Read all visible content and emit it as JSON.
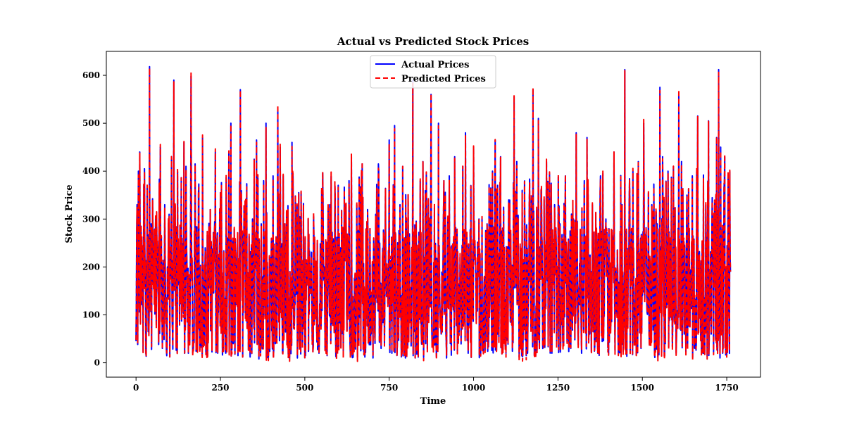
{
  "chart_data": {
    "type": "line",
    "title": "Actual vs Predicted Stock Prices",
    "xlabel": "Time",
    "ylabel": "Stock Price",
    "xlim": [
      -88,
      1850
    ],
    "ylim": [
      -30,
      650
    ],
    "xticks": [
      0,
      250,
      500,
      750,
      1000,
      1250,
      1500,
      1750
    ],
    "yticks": [
      0,
      100,
      200,
      300,
      400,
      500,
      600
    ],
    "n_points": 1762,
    "grid": false,
    "legend_position": "upper center",
    "series": [
      {
        "name": "Actual Prices",
        "color": "#0000ff",
        "line_style": "solid",
        "line_width": 2,
        "key_points": [
          [
            0,
            45
          ],
          [
            3,
            330
          ],
          [
            7,
            400
          ],
          [
            11,
            440
          ],
          [
            15,
            285
          ],
          [
            20,
            180
          ],
          [
            25,
            405
          ],
          [
            29,
            20
          ],
          [
            33,
            370
          ],
          [
            40,
            618
          ],
          [
            45,
            290
          ],
          [
            52,
            160
          ],
          [
            58,
            300
          ],
          [
            66,
            140
          ],
          [
            72,
            450
          ],
          [
            78,
            30
          ],
          [
            85,
            330
          ],
          [
            93,
            200
          ],
          [
            100,
            12
          ],
          [
            105,
            430
          ],
          [
            112,
            590
          ],
          [
            118,
            140
          ],
          [
            126,
            180
          ],
          [
            133,
            160
          ],
          [
            142,
            460
          ],
          [
            148,
            410
          ],
          [
            155,
            20
          ],
          [
            163,
            598
          ],
          [
            168,
            20
          ],
          [
            175,
            415
          ],
          [
            183,
            170
          ],
          [
            190,
            60
          ],
          [
            197,
            470
          ],
          [
            205,
            240
          ],
          [
            212,
            15
          ],
          [
            220,
            320
          ],
          [
            227,
            160
          ],
          [
            235,
            440
          ],
          [
            242,
            20
          ],
          [
            250,
            355
          ],
          [
            258,
            180
          ],
          [
            266,
            20
          ],
          [
            275,
            440
          ],
          [
            281,
            500
          ],
          [
            288,
            40
          ],
          [
            295,
            240
          ],
          [
            302,
            15
          ],
          [
            309,
            570
          ],
          [
            316,
            12
          ],
          [
            323,
            330
          ],
          [
            330,
            130
          ],
          [
            338,
            12
          ],
          [
            345,
            300
          ],
          [
            350,
            425
          ],
          [
            357,
            465
          ],
          [
            364,
            8
          ],
          [
            371,
            290
          ],
          [
            378,
            380
          ],
          [
            385,
            500
          ],
          [
            392,
            10
          ],
          [
            399,
            180
          ],
          [
            406,
            390
          ],
          [
            413,
            40
          ],
          [
            420,
            530
          ],
          [
            427,
            450
          ],
          [
            434,
            20
          ],
          [
            441,
            290
          ],
          [
            448,
            250
          ],
          [
            455,
            10
          ],
          [
            462,
            460
          ],
          [
            470,
            120
          ],
          [
            478,
            10
          ],
          [
            485,
            305
          ],
          [
            494,
            180
          ],
          [
            502,
            15
          ],
          [
            510,
            300
          ],
          [
            518,
            145
          ],
          [
            526,
            305
          ],
          [
            534,
            150
          ],
          [
            542,
            20
          ],
          [
            550,
            360
          ],
          [
            558,
            200
          ],
          [
            566,
            15
          ],
          [
            574,
            330
          ],
          [
            582,
            140
          ],
          [
            590,
            350
          ],
          [
            598,
            40
          ],
          [
            606,
            240
          ],
          [
            614,
            18
          ],
          [
            622,
            330
          ],
          [
            630,
            160
          ],
          [
            638,
            430
          ],
          [
            646,
            30
          ],
          [
            654,
            330
          ],
          [
            662,
            175
          ],
          [
            670,
            415
          ],
          [
            678,
            12
          ],
          [
            686,
            320
          ],
          [
            694,
            160
          ],
          [
            702,
            10
          ],
          [
            710,
            310
          ],
          [
            718,
            415
          ],
          [
            726,
            30
          ],
          [
            734,
            250
          ],
          [
            742,
            140
          ],
          [
            750,
            465
          ],
          [
            758,
            20
          ],
          [
            766,
            495
          ],
          [
            774,
            40
          ],
          [
            782,
            330
          ],
          [
            790,
            410
          ],
          [
            798,
            10
          ],
          [
            806,
            350
          ],
          [
            814,
            110
          ],
          [
            820,
            590
          ],
          [
            827,
            10
          ],
          [
            834,
            200
          ],
          [
            842,
            380
          ],
          [
            850,
            420
          ],
          [
            858,
            40
          ],
          [
            866,
            340
          ],
          [
            874,
            560
          ],
          [
            881,
            30
          ],
          [
            888,
            200
          ],
          [
            896,
            500
          ],
          [
            904,
            60
          ],
          [
            912,
            380
          ],
          [
            920,
            10
          ],
          [
            928,
            390
          ],
          [
            936,
            120
          ],
          [
            944,
            430
          ],
          [
            952,
            20
          ],
          [
            960,
            220
          ],
          [
            968,
            410
          ],
          [
            976,
            480
          ],
          [
            984,
            20
          ],
          [
            992,
            370
          ],
          [
            1000,
            450
          ],
          [
            1008,
            90
          ],
          [
            1016,
            300
          ],
          [
            1024,
            60
          ],
          [
            1032,
            180
          ],
          [
            1040,
            290
          ],
          [
            1048,
            120
          ],
          [
            1056,
            400
          ],
          [
            1064,
            465
          ],
          [
            1072,
            60
          ],
          [
            1080,
            430
          ],
          [
            1088,
            150
          ],
          [
            1096,
            20
          ],
          [
            1104,
            340
          ],
          [
            1112,
            200
          ],
          [
            1120,
            555
          ],
          [
            1128,
            420
          ],
          [
            1136,
            30
          ],
          [
            1144,
            360
          ],
          [
            1152,
            230
          ],
          [
            1160,
            20
          ],
          [
            1168,
            300
          ],
          [
            1176,
            570
          ],
          [
            1184,
            15
          ],
          [
            1192,
            510
          ],
          [
            1200,
            360
          ],
          [
            1208,
            40
          ],
          [
            1216,
            420
          ],
          [
            1224,
            150
          ],
          [
            1232,
            20
          ],
          [
            1240,
            330
          ],
          [
            1248,
            180
          ],
          [
            1256,
            290
          ],
          [
            1264,
            60
          ],
          [
            1272,
            390
          ],
          [
            1280,
            230
          ],
          [
            1288,
            30
          ],
          [
            1296,
            300
          ],
          [
            1304,
            480
          ],
          [
            1312,
            150
          ],
          [
            1320,
            20
          ],
          [
            1328,
            380
          ],
          [
            1336,
            470
          ],
          [
            1344,
            60
          ],
          [
            1352,
            330
          ],
          [
            1360,
            200
          ],
          [
            1368,
            20
          ],
          [
            1376,
            390
          ],
          [
            1384,
            180
          ],
          [
            1392,
            300
          ],
          [
            1400,
            20
          ],
          [
            1408,
            270
          ],
          [
            1416,
            440
          ],
          [
            1424,
            130
          ],
          [
            1432,
            30
          ],
          [
            1440,
            330
          ],
          [
            1448,
            612
          ],
          [
            1456,
            200
          ],
          [
            1464,
            20
          ],
          [
            1472,
            400
          ],
          [
            1480,
            150
          ],
          [
            1488,
            420
          ],
          [
            1496,
            30
          ],
          [
            1504,
            500
          ],
          [
            1512,
            250
          ],
          [
            1520,
            60
          ],
          [
            1528,
            330
          ],
          [
            1536,
            20
          ],
          [
            1544,
            290
          ],
          [
            1552,
            575
          ],
          [
            1560,
            430
          ],
          [
            1568,
            40
          ],
          [
            1576,
            400
          ],
          [
            1584,
            200
          ],
          [
            1592,
            410
          ],
          [
            1600,
            20
          ],
          [
            1608,
            565
          ],
          [
            1616,
            420
          ],
          [
            1624,
            60
          ],
          [
            1632,
            350
          ],
          [
            1640,
            160
          ],
          [
            1648,
            390
          ],
          [
            1656,
            30
          ],
          [
            1664,
            515
          ],
          [
            1672,
            200
          ],
          [
            1680,
            20
          ],
          [
            1688,
            330
          ],
          [
            1696,
            505
          ],
          [
            1704,
            60
          ],
          [
            1712,
            310
          ],
          [
            1720,
            470
          ],
          [
            1726,
            612
          ],
          [
            1732,
            450
          ],
          [
            1738,
            20
          ],
          [
            1744,
            430
          ],
          [
            1750,
            15
          ],
          [
            1755,
            335
          ],
          [
            1761,
            190
          ]
        ]
      },
      {
        "name": "Predicted Prices",
        "color": "#ff0000",
        "line_style": "dashed",
        "line_width": 2,
        "key_points": "follows Actual Prices closely (near-perfect overlap)"
      }
    ]
  }
}
